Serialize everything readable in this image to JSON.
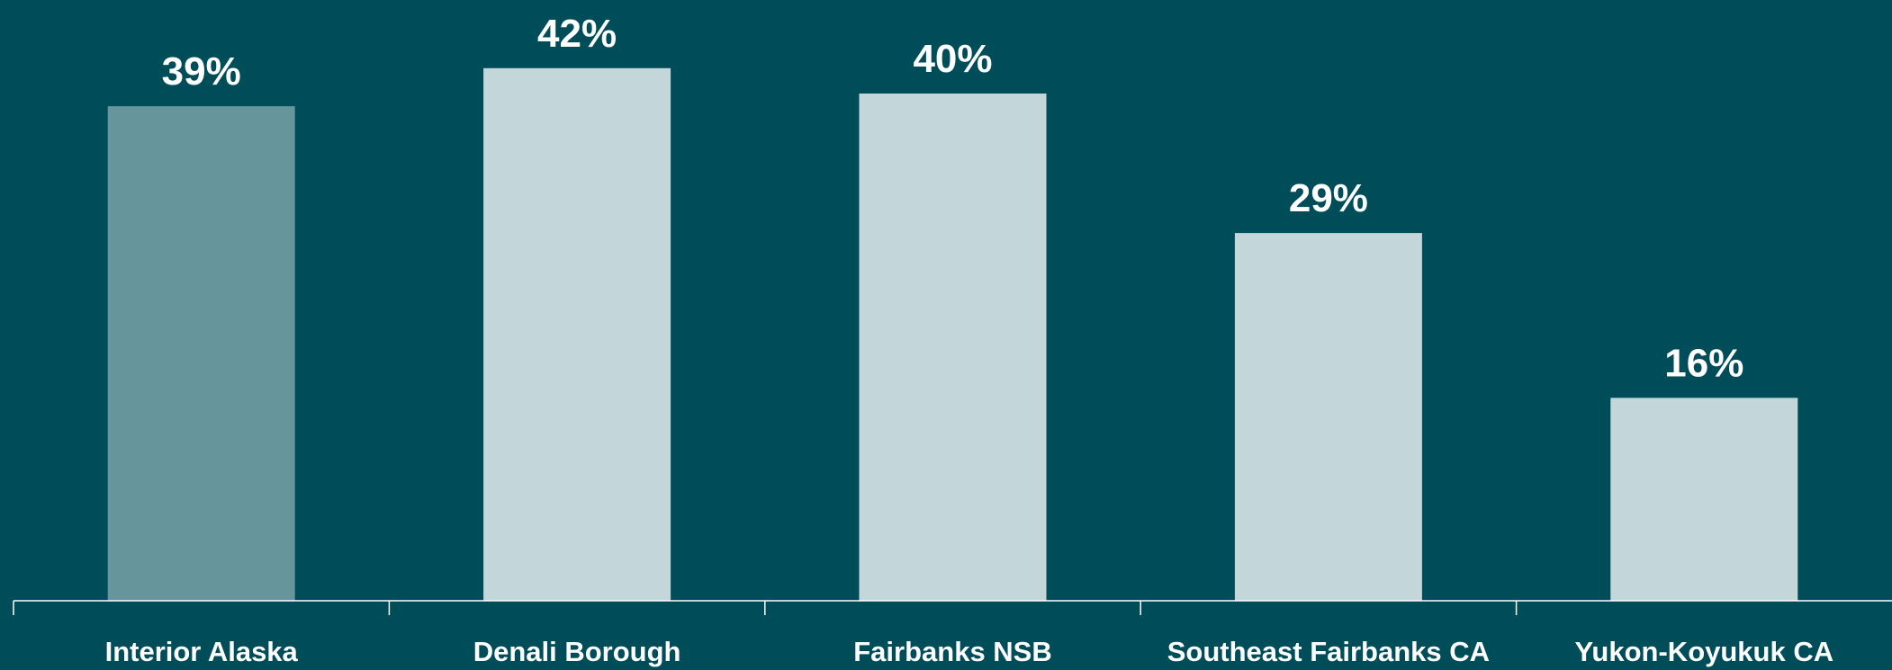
{
  "chart_data": {
    "type": "bar",
    "categories": [
      "Interior Alaska",
      "Denali Borough",
      "Fairbanks NSB",
      "Southeast Fairbanks CA",
      "Yukon-Koyukuk CA"
    ],
    "values": [
      39,
      42,
      40,
      29,
      16
    ],
    "value_labels": [
      "39%",
      "42%",
      "40%",
      "29%",
      "16%"
    ],
    "colors": [
      "#66969b",
      "#c3d7da",
      "#c3d7da",
      "#c3d7da",
      "#c3d7da"
    ]
  }
}
